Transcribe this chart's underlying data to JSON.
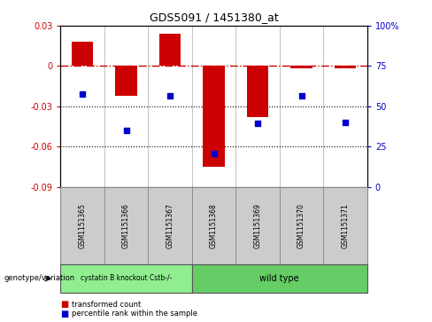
{
  "title": "GDS5091 / 1451380_at",
  "samples": [
    "GSM1151365",
    "GSM1151366",
    "GSM1151367",
    "GSM1151368",
    "GSM1151369",
    "GSM1151370",
    "GSM1151371"
  ],
  "bar_values": [
    0.018,
    -0.022,
    0.024,
    -0.075,
    -0.038,
    -0.002,
    -0.002
  ],
  "dot_values": [
    -0.021,
    -0.048,
    -0.022,
    -0.065,
    -0.043,
    -0.022,
    -0.042
  ],
  "bar_color": "#CC0000",
  "dot_color": "#0000CC",
  "ylim_left": [
    -0.09,
    0.03
  ],
  "ylim_right": [
    0,
    100
  ],
  "yticks_left": [
    -0.09,
    -0.06,
    -0.03,
    0.0,
    0.03
  ],
  "yticks_left_labels": [
    "-0.09",
    "-0.06",
    "-0.03",
    "0",
    "0.03"
  ],
  "yticks_right": [
    0,
    25,
    50,
    75,
    100
  ],
  "yticks_right_labels": [
    "0",
    "25",
    "50",
    "75",
    "100%"
  ],
  "group1_label": "cystatin B knockout Cstb-/-",
  "group2_label": "wild type",
  "group1_color": "#90EE90",
  "group2_color": "#66CC66",
  "group1_count": 3,
  "group2_count": 4,
  "genotype_label": "genotype/variation",
  "legend_bar_label": "transformed count",
  "legend_dot_label": "percentile rank within the sample",
  "hline_color": "#CC0000",
  "dotted_lines": [
    -0.03,
    -0.06
  ],
  "bg_color": "#ffffff",
  "right_ylabel_color": "#0000CC",
  "left_ylabel_color": "#CC0000",
  "bar_width": 0.5,
  "sample_box_color": "#cccccc"
}
